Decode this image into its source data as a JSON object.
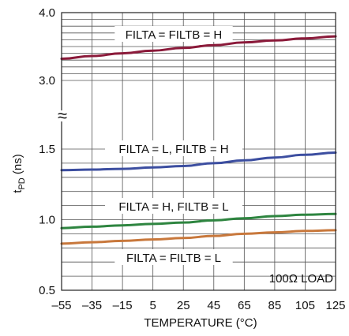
{
  "chart_data": {
    "type": "line",
    "title": "",
    "xlabel": "TEMPERATURE (°C)",
    "ylabel_main": "t",
    "ylabel_sub": "PD",
    "ylabel_unit": " (ns)",
    "x_ticks": [
      "–55",
      "–35",
      "–15",
      "5",
      "25",
      "45",
      "65",
      "85",
      "105",
      "125"
    ],
    "y_ticks": [
      "0.5",
      "1.0",
      "1.5",
      "3.0",
      "4.0"
    ],
    "xlim": [
      -55,
      125
    ],
    "y_segments": [
      {
        "range": [
          0.5,
          1.5
        ],
        "ticks": [
          0.5,
          1.0,
          1.5
        ]
      },
      {
        "range": [
          3.0,
          4.0
        ],
        "ticks": [
          3.0,
          4.0
        ]
      }
    ],
    "axis_break": true,
    "axis_break_symbol": "≈",
    "grid": true,
    "annotation": "100Ω LOAD",
    "series": [
      {
        "name": "FILTA = FILTB = H",
        "color": "#8b1a3a",
        "x": [
          -55,
          -35,
          -15,
          5,
          25,
          45,
          65,
          85,
          105,
          125
        ],
        "y": [
          3.32,
          3.36,
          3.4,
          3.44,
          3.48,
          3.52,
          3.56,
          3.59,
          3.62,
          3.65
        ]
      },
      {
        "name": "FILTA = L, FILTB = H",
        "color": "#3c4ea0",
        "x": [
          -55,
          -35,
          -15,
          5,
          25,
          45,
          65,
          85,
          105,
          125
        ],
        "y": [
          1.35,
          1.355,
          1.36,
          1.37,
          1.38,
          1.4,
          1.42,
          1.44,
          1.46,
          1.475
        ]
      },
      {
        "name": "FILTA = H, FILTB = L",
        "color": "#2e8540",
        "x": [
          -55,
          -35,
          -15,
          5,
          25,
          45,
          65,
          85,
          105,
          125
        ],
        "y": [
          0.94,
          0.95,
          0.96,
          0.97,
          0.98,
          0.995,
          1.01,
          1.025,
          1.035,
          1.04
        ]
      },
      {
        "name": "FILTA = FILTB = L",
        "color": "#c8783c",
        "x": [
          -55,
          -35,
          -15,
          5,
          25,
          45,
          65,
          85,
          105,
          125
        ],
        "y": [
          0.83,
          0.84,
          0.85,
          0.86,
          0.87,
          0.885,
          0.9,
          0.91,
          0.92,
          0.925
        ]
      }
    ]
  }
}
